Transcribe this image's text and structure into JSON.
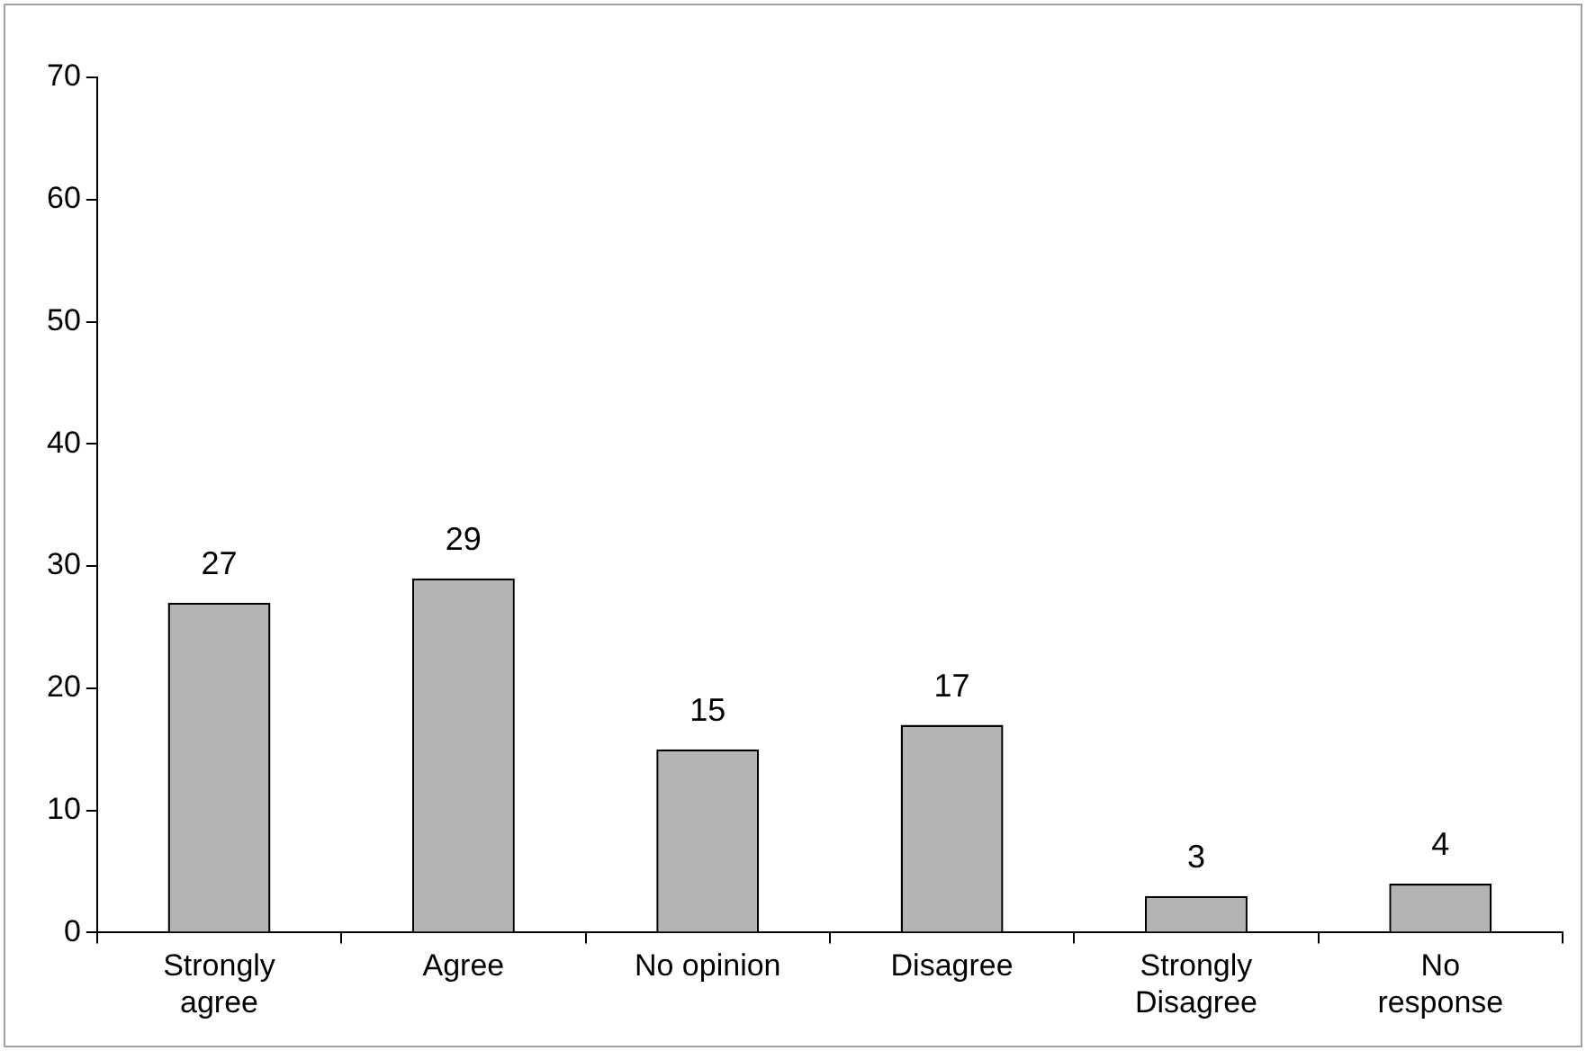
{
  "chart_data": {
    "type": "bar",
    "categories": [
      "Strongly agree",
      "Agree",
      "No opinion",
      "Disagree",
      "Strongly Disagree",
      "No response"
    ],
    "values": [
      27,
      29,
      15,
      17,
      3,
      4
    ],
    "color": "#b4b4b4",
    "ylim": [
      0,
      70
    ],
    "yticks": [
      0,
      10,
      20,
      30,
      40,
      50,
      60,
      70
    ],
    "grid": false,
    "legend": false,
    "data_labels": true
  }
}
